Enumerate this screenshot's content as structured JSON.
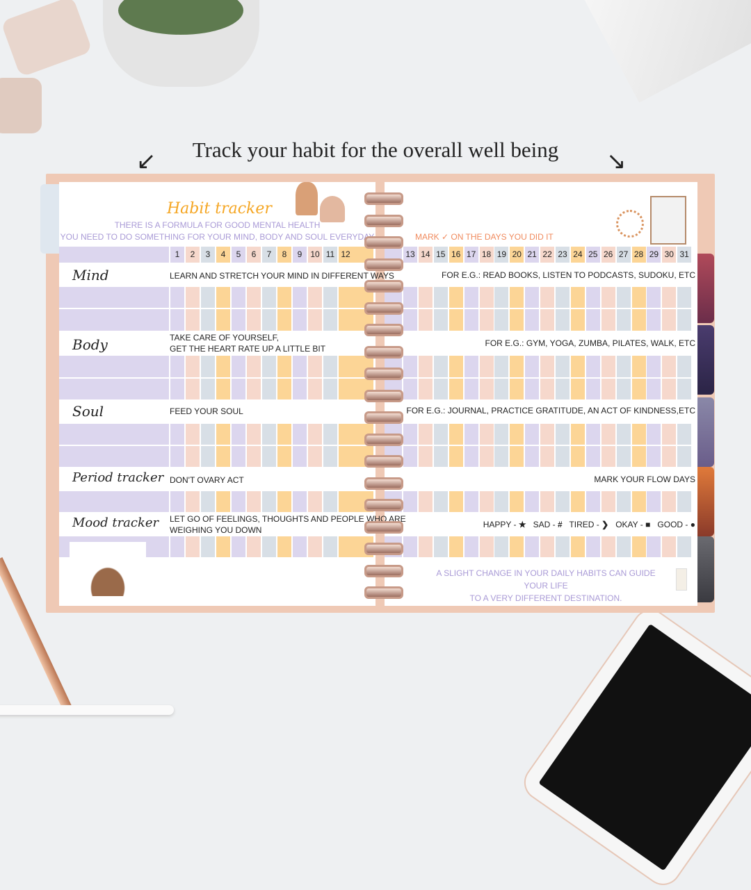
{
  "headline": "Track your habit for the overall well being",
  "left_page": {
    "title": "Habit tracker",
    "subtitle_1": "THERE IS A FORMULA FOR GOOD MENTAL HEALTH",
    "subtitle_2": "YOU NEED TO DO SOMETHING FOR YOUR MIND, BODY AND SOUL EVERYDAY",
    "days": [
      "1",
      "2",
      "3",
      "4",
      "5",
      "6",
      "7",
      "8",
      "9",
      "10",
      "11",
      "12"
    ],
    "sections": [
      {
        "label": "Mind",
        "desc_1": "LEARN AND STRETCH YOUR MIND IN DIFFERENT WAYS",
        "desc_2": ""
      },
      {
        "label": "Body",
        "desc_1": "TAKE CARE OF YOURSELF,",
        "desc_2": "GET THE HEART RATE UP A LITTLE BIT"
      },
      {
        "label": "Soul",
        "desc_1": "FEED YOUR SOUL",
        "desc_2": ""
      },
      {
        "label": "Period tracker",
        "desc_1": "DON'T OVARY ACT",
        "desc_2": ""
      },
      {
        "label": "Mood tracker",
        "desc_1": "LET GO OF FEELINGS, THOUGHTS AND PEOPLE WHO ARE",
        "desc_2": "WEIGHING YOU DOWN"
      }
    ]
  },
  "right_page": {
    "mark_note": "MARK ✓ ON THE DAYS YOU DID IT",
    "days": [
      "13",
      "14",
      "15",
      "16",
      "17",
      "18",
      "19",
      "20",
      "21",
      "22",
      "23",
      "24",
      "25",
      "26",
      "27",
      "28",
      "29",
      "30",
      "31"
    ],
    "examples": [
      "FOR E.G.: READ BOOKS, LISTEN TO PODCASTS, SUDOKU, ETC",
      "FOR E.G.: GYM, YOGA, ZUMBA, PILATES, WALK, ETC",
      "FOR E.G.: JOURNAL, PRACTICE GRATITUDE, AN ACT OF KINDNESS,ETC",
      "MARK YOUR FLOW DAYS"
    ],
    "legend": [
      {
        "label": "HAPPY -",
        "symbol": "★"
      },
      {
        "label": "SAD -",
        "symbol": "#"
      },
      {
        "label": "TIRED -",
        "symbol": "❯"
      },
      {
        "label": "OKAY -",
        "symbol": "■"
      },
      {
        "label": "GOOD -",
        "symbol": "●"
      }
    ],
    "quote_1": "A SLIGHT CHANGE IN YOUR DAILY HABITS CAN GUIDE YOUR LIFE",
    "quote_2": "TO A VERY DIFFERENT DESTINATION."
  },
  "colors": {
    "lavender": "#dcd6ee",
    "peach": "#f6d8cc",
    "gray": "#d8dfe6",
    "yellow": "#fcd596",
    "title": "#f5a623",
    "accent_text": "#a99ad6",
    "mark_note": "#f08a5d"
  }
}
